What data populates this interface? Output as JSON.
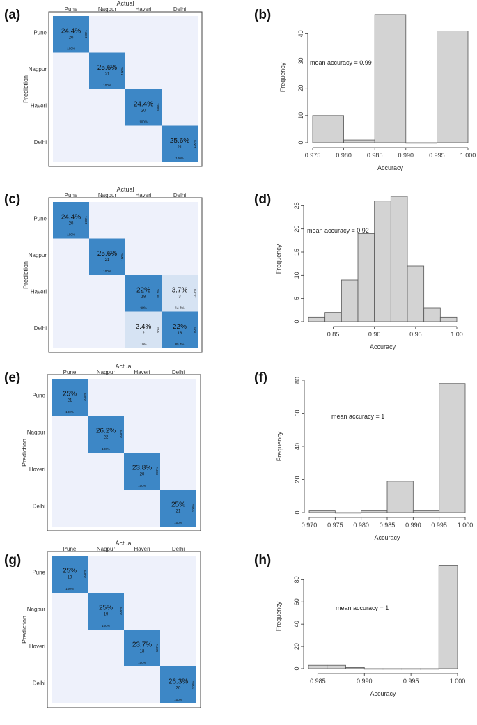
{
  "panel_labels": [
    "(a)",
    "(b)",
    "(c)",
    "(d)",
    "(e)",
    "(f)",
    "(g)",
    "(h)"
  ],
  "chart_data": [
    {
      "type": "heatmap",
      "panel": "(a)",
      "title": "Actual",
      "xlabel": "Actual",
      "ylabel": "Prediction",
      "classes": [
        "Pune",
        "Nagpur",
        "Haveri",
        "Delhi"
      ],
      "cells": [
        {
          "row": 0,
          "col": 0,
          "pct": "24.4%",
          "count": "20",
          "bottom": "100%",
          "side": "100%"
        },
        {
          "row": 1,
          "col": 1,
          "pct": "25.6%",
          "count": "21",
          "bottom": "100%",
          "side": "100%"
        },
        {
          "row": 2,
          "col": 2,
          "pct": "24.4%",
          "count": "20",
          "bottom": "100%",
          "side": "100%"
        },
        {
          "row": 3,
          "col": 3,
          "pct": "25.6%",
          "count": "21",
          "bottom": "100%",
          "side": "100%"
        }
      ]
    },
    {
      "type": "bar",
      "panel": "(b)",
      "xlabel": "Accuracy",
      "ylabel": "Frequency",
      "annotation": "mean accuracy = 0.99",
      "xlim": [
        0.975,
        1.0
      ],
      "ylim": [
        0,
        48
      ],
      "xticks": [
        "0.975",
        "0.980",
        "0.985",
        "0.990",
        "0.995",
        "1.000"
      ],
      "yticks": [
        "0",
        "10",
        "20",
        "30",
        "40"
      ],
      "bins": [
        {
          "x0": 0.975,
          "x1": 0.98,
          "count": 10
        },
        {
          "x0": 0.98,
          "x1": 0.985,
          "count": 1
        },
        {
          "x0": 0.985,
          "x1": 0.99,
          "count": 47
        },
        {
          "x0": 0.99,
          "x1": 0.995,
          "count": 0
        },
        {
          "x0": 0.995,
          "x1": 1.0,
          "count": 41
        }
      ]
    },
    {
      "type": "heatmap",
      "panel": "(c)",
      "title": "Actual",
      "xlabel": "Actual",
      "ylabel": "Prediction",
      "classes": [
        "Pune",
        "Nagpur",
        "Haveri",
        "Delhi"
      ],
      "cells": [
        {
          "row": 0,
          "col": 0,
          "pct": "24.4%",
          "count": "20",
          "bottom": "100%",
          "side": "100%"
        },
        {
          "row": 1,
          "col": 1,
          "pct": "25.6%",
          "count": "21",
          "bottom": "100%",
          "side": "100%"
        },
        {
          "row": 2,
          "col": 2,
          "pct": "22%",
          "count": "18",
          "bottom": "90%",
          "side": "85.7%"
        },
        {
          "row": 2,
          "col": 3,
          "pct": "3.7%",
          "count": "3",
          "bottom": "14.3%",
          "side": "14.3%",
          "light": true
        },
        {
          "row": 3,
          "col": 2,
          "pct": "2.4%",
          "count": "2",
          "bottom": "10%",
          "side": "10%",
          "light": true
        },
        {
          "row": 3,
          "col": 3,
          "pct": "22%",
          "count": "18",
          "bottom": "85.7%",
          "side": "90%"
        }
      ]
    },
    {
      "type": "bar",
      "panel": "(d)",
      "xlabel": "Accuracy",
      "ylabel": "Frequency",
      "annotation": "mean accuracy = 0.92",
      "xlim": [
        0.82,
        1.0
      ],
      "ylim": [
        0,
        27
      ],
      "xticks": [
        "0.85",
        "0.90",
        "0.95",
        "1.00"
      ],
      "yticks": [
        "0",
        "5",
        "10",
        "15",
        "20",
        "25"
      ],
      "bins": [
        {
          "x0": 0.82,
          "x1": 0.84,
          "count": 1
        },
        {
          "x0": 0.84,
          "x1": 0.86,
          "count": 2
        },
        {
          "x0": 0.86,
          "x1": 0.88,
          "count": 9
        },
        {
          "x0": 0.88,
          "x1": 0.9,
          "count": 19
        },
        {
          "x0": 0.9,
          "x1": 0.92,
          "count": 26
        },
        {
          "x0": 0.92,
          "x1": 0.94,
          "count": 27
        },
        {
          "x0": 0.94,
          "x1": 0.96,
          "count": 12
        },
        {
          "x0": 0.96,
          "x1": 0.98,
          "count": 3
        },
        {
          "x0": 0.98,
          "x1": 1.0,
          "count": 1
        }
      ]
    },
    {
      "type": "heatmap",
      "panel": "(e)",
      "title": "Actual",
      "xlabel": "Actual",
      "ylabel": "Prediction",
      "classes": [
        "Pune",
        "Nagpur",
        "Haveri",
        "Delhi"
      ],
      "cells": [
        {
          "row": 0,
          "col": 0,
          "pct": "25%",
          "count": "21",
          "bottom": "100%",
          "side": "100%"
        },
        {
          "row": 1,
          "col": 1,
          "pct": "26.2%",
          "count": "22",
          "bottom": "100%",
          "side": "100%"
        },
        {
          "row": 2,
          "col": 2,
          "pct": "23.8%",
          "count": "20",
          "bottom": "100%",
          "side": "100%"
        },
        {
          "row": 3,
          "col": 3,
          "pct": "25%",
          "count": "21",
          "bottom": "100%",
          "side": "100%"
        }
      ]
    },
    {
      "type": "bar",
      "panel": "(f)",
      "xlabel": "Accuracy",
      "ylabel": "Frequency",
      "annotation": "mean accuracy = 1",
      "xlim": [
        0.97,
        1.0
      ],
      "ylim": [
        0,
        80
      ],
      "xticks": [
        "0.970",
        "0.975",
        "0.980",
        "0.985",
        "0.990",
        "0.995",
        "1.000"
      ],
      "yticks": [
        "0",
        "20",
        "40",
        "60",
        "80"
      ],
      "bins": [
        {
          "x0": 0.97,
          "x1": 0.975,
          "count": 1
        },
        {
          "x0": 0.975,
          "x1": 0.98,
          "count": 0
        },
        {
          "x0": 0.98,
          "x1": 0.985,
          "count": 1
        },
        {
          "x0": 0.985,
          "x1": 0.99,
          "count": 19
        },
        {
          "x0": 0.99,
          "x1": 0.995,
          "count": 1
        },
        {
          "x0": 0.995,
          "x1": 1.0,
          "count": 78
        }
      ]
    },
    {
      "type": "heatmap",
      "panel": "(g)",
      "title": "Actual",
      "xlabel": "Actual",
      "ylabel": "Prediction",
      "classes": [
        "Pune",
        "Nagpur",
        "Haveri",
        "Delhi"
      ],
      "cells": [
        {
          "row": 0,
          "col": 0,
          "pct": "25%",
          "count": "19",
          "bottom": "100%",
          "side": "100%"
        },
        {
          "row": 1,
          "col": 1,
          "pct": "25%",
          "count": "19",
          "bottom": "100%",
          "side": "100%"
        },
        {
          "row": 2,
          "col": 2,
          "pct": "23.7%",
          "count": "18",
          "bottom": "100%",
          "side": "100%"
        },
        {
          "row": 3,
          "col": 3,
          "pct": "26.3%",
          "count": "20",
          "bottom": "100%",
          "side": "100%"
        }
      ]
    },
    {
      "type": "bar",
      "panel": "(h)",
      "xlabel": "Accuracy",
      "ylabel": "Frequency",
      "annotation": "mean accuracy = 1",
      "xlim": [
        0.984,
        1.0
      ],
      "ylim": [
        0,
        94
      ],
      "xticks": [
        "0.985",
        "0.990",
        "0.995",
        "1.000"
      ],
      "yticks": [
        "0",
        "20",
        "40",
        "60",
        "80"
      ],
      "xtickvals": [
        0.985,
        0.99,
        0.995,
        1.0
      ],
      "bins": [
        {
          "x0": 0.984,
          "x1": 0.986,
          "count": 3
        },
        {
          "x0": 0.986,
          "x1": 0.988,
          "count": 3
        },
        {
          "x0": 0.988,
          "x1": 0.99,
          "count": 1
        },
        {
          "x0": 0.99,
          "x1": 0.992,
          "count": 0
        },
        {
          "x0": 0.992,
          "x1": 0.994,
          "count": 0
        },
        {
          "x0": 0.994,
          "x1": 0.996,
          "count": 0
        },
        {
          "x0": 0.996,
          "x1": 0.998,
          "count": 0
        },
        {
          "x0": 0.998,
          "x1": 1.0,
          "count": 93
        }
      ]
    }
  ],
  "colors": {
    "matrix_bg": "#eef1fb",
    "cell_dark": "#3d87c6",
    "cell_light": "#d6e3f3",
    "bar_fill": "#d3d3d3",
    "axis": "#333333"
  }
}
